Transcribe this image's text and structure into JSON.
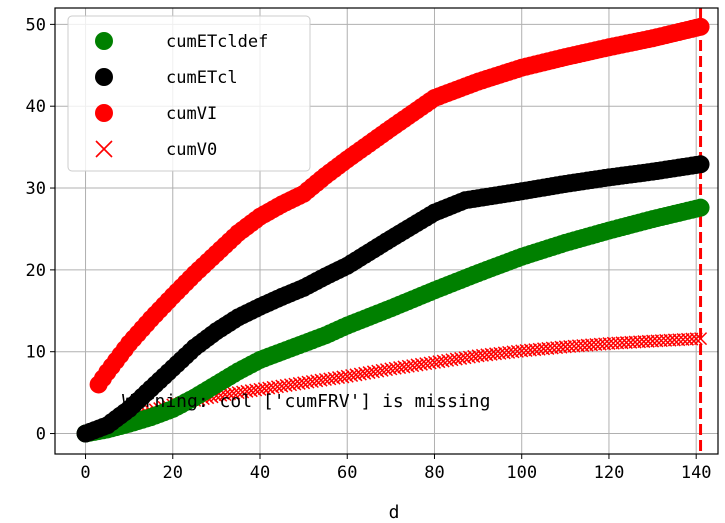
{
  "chart_data": {
    "type": "scatter",
    "xlabel": "d",
    "ylabel": "",
    "xlim": [
      -7,
      145
    ],
    "ylim": [
      -2.5,
      52
    ],
    "x_ticks": [
      "0",
      "20",
      "40",
      "60",
      "80",
      "100",
      "120",
      "140"
    ],
    "y_ticks": [
      "0",
      "10",
      "20",
      "30",
      "40",
      "50"
    ],
    "grid": true,
    "legend_position": "top-left",
    "vline": {
      "x": 141,
      "color": "#ff0000",
      "style": "dashed"
    },
    "annotation": "Warning: col ['cumFRV'] is missing",
    "series": [
      {
        "name": "cumETcldef",
        "color": "#008000",
        "marker": "circle",
        "x": [
          0,
          5,
          10,
          15,
          20,
          25,
          30,
          35,
          40,
          45,
          50,
          55,
          60,
          70,
          80,
          90,
          100,
          110,
          120,
          130,
          141
        ],
        "y": [
          0,
          0.5,
          1.2,
          2.0,
          3.0,
          4.4,
          6.0,
          7.6,
          9.0,
          10.0,
          11.0,
          12.0,
          13.2,
          15.3,
          17.5,
          19.6,
          21.6,
          23.3,
          24.8,
          26.2,
          27.6
        ]
      },
      {
        "name": "cumETcl",
        "color": "#000000",
        "marker": "circle",
        "x": [
          0,
          5,
          10,
          15,
          20,
          25,
          30,
          35,
          40,
          45,
          50,
          55,
          60,
          70,
          80,
          87,
          100,
          110,
          120,
          130,
          141
        ],
        "y": [
          0,
          1.0,
          3.0,
          5.5,
          8.0,
          10.5,
          12.5,
          14.2,
          15.5,
          16.7,
          17.8,
          19.2,
          20.5,
          23.8,
          27.0,
          28.5,
          29.6,
          30.5,
          31.3,
          32.0,
          32.9
        ]
      },
      {
        "name": "cumVI",
        "color": "#ff0000",
        "marker": "circle",
        "x": [
          3,
          5,
          10,
          15,
          20,
          25,
          30,
          35,
          40,
          45,
          50,
          55,
          60,
          70,
          80,
          90,
          100,
          110,
          120,
          130,
          141
        ],
        "y": [
          6.0,
          7.5,
          11.0,
          14.0,
          16.8,
          19.5,
          22.0,
          24.5,
          26.5,
          28.0,
          29.3,
          31.5,
          33.5,
          37.3,
          41.0,
          43.0,
          44.7,
          46.0,
          47.2,
          48.3,
          49.7
        ]
      },
      {
        "name": "cumV0",
        "color": "#ff0000",
        "marker": "x",
        "x": [
          0,
          10,
          20,
          30,
          40,
          50,
          60,
          70,
          80,
          90,
          100,
          110,
          120,
          130,
          141
        ],
        "y": [
          0,
          2.0,
          3.5,
          4.6,
          5.4,
          6.2,
          7.0,
          7.9,
          8.7,
          9.5,
          10.1,
          10.6,
          11.0,
          11.3,
          11.6
        ]
      }
    ]
  }
}
